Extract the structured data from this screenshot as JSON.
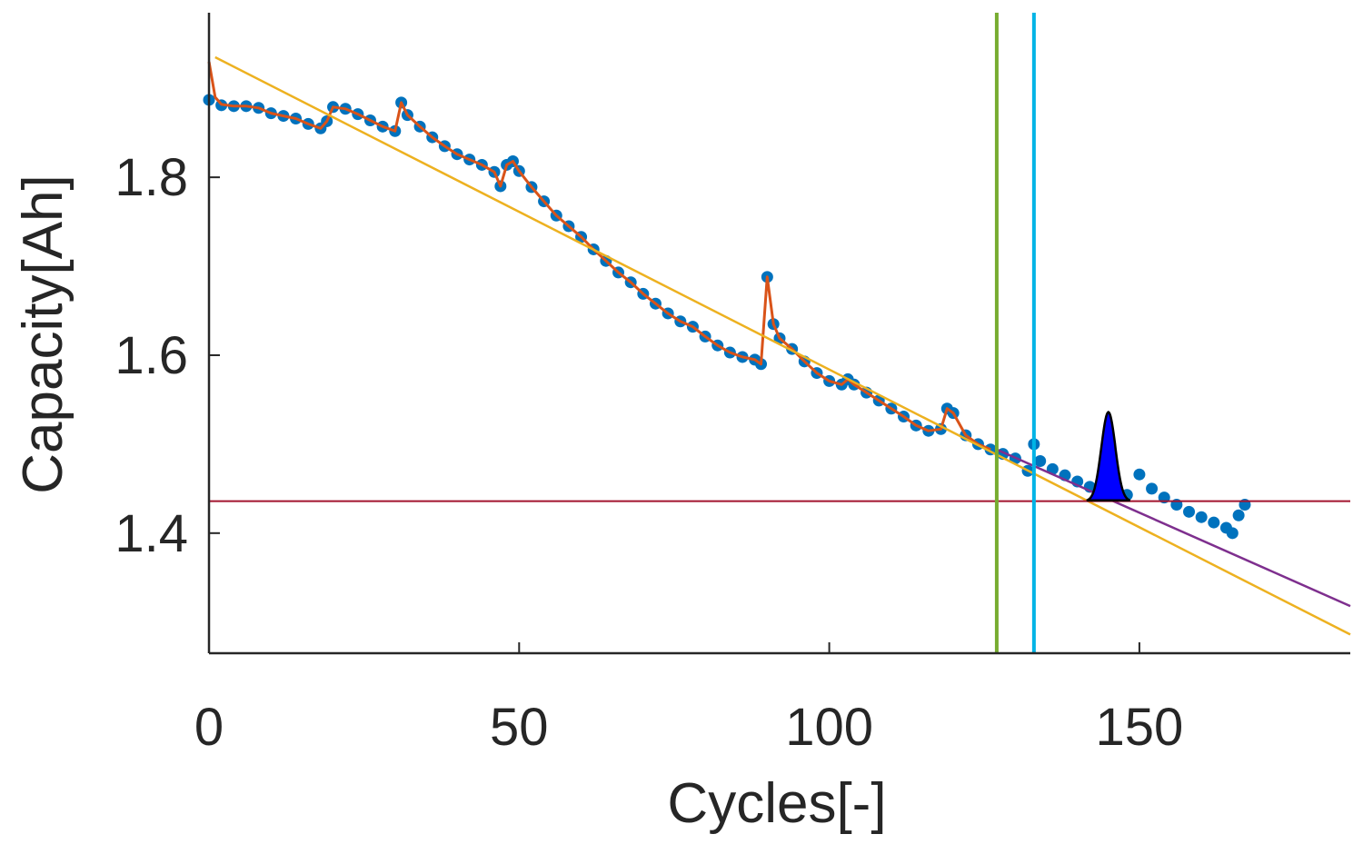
{
  "chart_data": {
    "type": "scatter",
    "xlabel": "Cycles[-]",
    "ylabel": "Capacity[Ah]",
    "xlim": [
      0,
      184
    ],
    "ylim": [
      1.265,
      1.985
    ],
    "x_ticks": [
      0,
      50,
      100,
      150
    ],
    "x_tick_labels": [
      "0",
      "50",
      "100",
      "150"
    ],
    "y_ticks": [
      1.4,
      1.6,
      1.8
    ],
    "y_tick_labels": [
      "1.4",
      "1.6",
      "1.8"
    ],
    "grid": false,
    "colors": {
      "measured": "#0072bd",
      "filtered": "#d95319",
      "linear_fit": "#edb120",
      "prediction": "#7e2f8e",
      "threshold": "#a2142f",
      "start_marker": "#77ac30",
      "current_marker": "#00b4e6",
      "pdf": "#0000ff"
    },
    "series": [
      {
        "role": "measured",
        "style": "markers",
        "x": [
          0,
          2,
          4,
          6,
          8,
          10,
          12,
          14,
          16,
          18,
          19,
          20,
          22,
          24,
          26,
          28,
          30,
          31,
          32,
          34,
          36,
          38,
          40,
          42,
          44,
          46,
          47,
          48,
          49,
          50,
          52,
          54,
          56,
          58,
          60,
          62,
          64,
          66,
          68,
          70,
          72,
          74,
          76,
          78,
          80,
          82,
          84,
          86,
          88,
          89,
          90,
          91,
          92,
          94,
          96,
          98,
          100,
          102,
          103,
          104,
          106,
          108,
          110,
          112,
          114,
          116,
          118,
          119,
          120,
          122,
          124,
          126,
          128,
          130,
          132,
          133,
          134,
          136,
          138,
          140,
          142,
          144,
          146,
          148,
          150,
          152,
          154,
          156,
          158,
          160,
          162,
          164,
          165,
          166,
          167
        ],
        "y": [
          1.887,
          1.881,
          1.88,
          1.88,
          1.878,
          1.872,
          1.869,
          1.866,
          1.86,
          1.855,
          1.863,
          1.879,
          1.877,
          1.871,
          1.864,
          1.857,
          1.852,
          1.884,
          1.87,
          1.857,
          1.845,
          1.835,
          1.826,
          1.82,
          1.814,
          1.806,
          1.79,
          1.814,
          1.818,
          1.807,
          1.789,
          1.773,
          1.757,
          1.745,
          1.733,
          1.719,
          1.706,
          1.693,
          1.682,
          1.669,
          1.658,
          1.647,
          1.638,
          1.632,
          1.621,
          1.611,
          1.603,
          1.598,
          1.595,
          1.59,
          1.688,
          1.635,
          1.619,
          1.607,
          1.593,
          1.58,
          1.571,
          1.567,
          1.573,
          1.567,
          1.558,
          1.549,
          1.54,
          1.531,
          1.521,
          1.515,
          1.517,
          1.54,
          1.535,
          1.51,
          1.5,
          1.494,
          1.489,
          1.484,
          1.47,
          1.5,
          1.481,
          1.472,
          1.465,
          1.458,
          1.452,
          1.448,
          1.446,
          1.443,
          1.466,
          1.45,
          1.44,
          1.432,
          1.424,
          1.418,
          1.412,
          1.406,
          1.4,
          1.42,
          1.432
        ]
      },
      {
        "role": "filtered",
        "style": "line",
        "x": [
          0,
          1,
          2,
          4,
          6,
          8,
          10,
          12,
          14,
          16,
          18,
          19,
          20,
          22,
          24,
          26,
          28,
          30,
          31,
          32,
          34,
          36,
          38,
          40,
          42,
          44,
          46,
          47,
          48,
          49,
          50,
          52,
          54,
          56,
          58,
          60,
          62,
          64,
          66,
          68,
          70,
          72,
          74,
          76,
          78,
          80,
          82,
          84,
          86,
          88,
          89,
          90,
          91,
          92,
          94,
          96,
          98,
          100,
          102,
          103,
          104,
          106,
          108,
          110,
          112,
          114,
          116,
          118,
          119,
          120,
          122,
          124,
          126
        ],
        "y": [
          1.93,
          1.89,
          1.882,
          1.88,
          1.88,
          1.878,
          1.872,
          1.869,
          1.866,
          1.86,
          1.855,
          1.863,
          1.879,
          1.877,
          1.871,
          1.864,
          1.857,
          1.852,
          1.884,
          1.87,
          1.857,
          1.845,
          1.835,
          1.826,
          1.82,
          1.814,
          1.806,
          1.79,
          1.814,
          1.818,
          1.807,
          1.789,
          1.773,
          1.757,
          1.745,
          1.733,
          1.719,
          1.706,
          1.693,
          1.682,
          1.669,
          1.658,
          1.647,
          1.638,
          1.632,
          1.621,
          1.611,
          1.603,
          1.598,
          1.595,
          1.59,
          1.688,
          1.635,
          1.619,
          1.607,
          1.593,
          1.58,
          1.571,
          1.567,
          1.573,
          1.567,
          1.558,
          1.549,
          1.54,
          1.531,
          1.521,
          1.515,
          1.517,
          1.54,
          1.535,
          1.51,
          1.5,
          1.494
        ]
      },
      {
        "role": "linear_fit",
        "style": "line",
        "x": [
          1,
          184
        ],
        "y": [
          1.935,
          1.286
        ]
      },
      {
        "role": "prediction",
        "style": "line",
        "x": [
          127,
          184
        ],
        "y": [
          1.494,
          1.318
        ]
      }
    ],
    "threshold_y": 1.436,
    "vertical_lines": [
      {
        "role": "start_marker",
        "x": 127
      },
      {
        "role": "current_marker",
        "x": 133
      }
    ],
    "pdf_shape": {
      "role": "pdf",
      "x_start": 141.5,
      "x_end": 148.5,
      "peak_x": 145,
      "base_y": 1.436,
      "peak_y": 1.536
    }
  }
}
